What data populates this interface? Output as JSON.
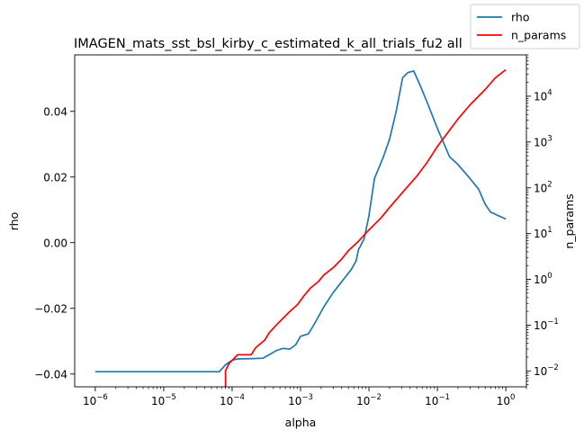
{
  "chart_data": {
    "type": "line",
    "title": "IMAGEN_mats_sst_bsl_kirby_c_estimated_k_all_trials_fu2 all",
    "xlabel": "alpha",
    "ylabel": "rho",
    "y2label": "n_params",
    "xscale": "log",
    "y2scale": "log",
    "xlim": [
      5e-07,
      2
    ],
    "ylim": [
      -0.0439,
      0.0572
    ],
    "y2lim": [
      0.0045,
      80000
    ],
    "x_ticks": [
      {
        "value": 1e-06,
        "base": "10",
        "exp": "−6"
      },
      {
        "value": 1e-05,
        "base": "10",
        "exp": "−5"
      },
      {
        "value": 0.0001,
        "base": "10",
        "exp": "−4"
      },
      {
        "value": 0.001,
        "base": "10",
        "exp": "−3"
      },
      {
        "value": 0.01,
        "base": "10",
        "exp": "−2"
      },
      {
        "value": 0.1,
        "base": "10",
        "exp": "−1"
      },
      {
        "value": 1,
        "base": "10",
        "exp": "0"
      }
    ],
    "y_ticks": [
      {
        "value": 0.04,
        "label": "0.04"
      },
      {
        "value": 0.02,
        "label": "0.02"
      },
      {
        "value": 0.0,
        "label": "0.00"
      },
      {
        "value": -0.02,
        "label": "−0.02"
      },
      {
        "value": -0.04,
        "label": "−0.04"
      }
    ],
    "y2_ticks": [
      {
        "value": 0.01,
        "base": "10",
        "exp": "−2"
      },
      {
        "value": 0.1,
        "base": "10",
        "exp": "−1"
      },
      {
        "value": 1,
        "base": "10",
        "exp": "0"
      },
      {
        "value": 10,
        "base": "10",
        "exp": "1"
      },
      {
        "value": 100,
        "base": "10",
        "exp": "2"
      },
      {
        "value": 1000,
        "base": "10",
        "exp": "3"
      },
      {
        "value": 10000,
        "base": "10",
        "exp": "4"
      }
    ],
    "legend": {
      "placement": "top-right",
      "entries": [
        "rho",
        "n_params"
      ]
    },
    "grid": false,
    "series": [
      {
        "name": "rho",
        "axis": "left",
        "color": "#1f77b4",
        "points": [
          [
            1e-06,
            -0.0393
          ],
          [
            6.5e-05,
            -0.0393
          ],
          [
            8e-05,
            -0.0372
          ],
          [
            0.0001,
            -0.0358
          ],
          [
            0.00012,
            -0.0354
          ],
          [
            0.0002,
            -0.0353
          ],
          [
            0.00028,
            -0.0352
          ],
          [
            0.00035,
            -0.0341
          ],
          [
            0.00045,
            -0.0328
          ],
          [
            0.00055,
            -0.0322
          ],
          [
            0.0007,
            -0.0324
          ],
          [
            0.00085,
            -0.0311
          ],
          [
            0.001,
            -0.0285
          ],
          [
            0.0013,
            -0.0278
          ],
          [
            0.0016,
            -0.0247
          ],
          [
            0.0022,
            -0.0195
          ],
          [
            0.003,
            -0.0152
          ],
          [
            0.0045,
            -0.0105
          ],
          [
            0.0055,
            -0.0082
          ],
          [
            0.0065,
            -0.0055
          ],
          [
            0.007,
            -0.0022
          ],
          [
            0.0085,
            0.0012
          ],
          [
            0.01,
            0.0082
          ],
          [
            0.012,
            0.0195
          ],
          [
            0.016,
            0.0258
          ],
          [
            0.02,
            0.0315
          ],
          [
            0.025,
            0.04
          ],
          [
            0.031,
            0.0502
          ],
          [
            0.037,
            0.0518
          ],
          [
            0.045,
            0.0523
          ],
          [
            0.055,
            0.0483
          ],
          [
            0.07,
            0.043
          ],
          [
            0.1,
            0.0348
          ],
          [
            0.15,
            0.0262
          ],
          [
            0.2,
            0.0238
          ],
          [
            0.3,
            0.0195
          ],
          [
            0.4,
            0.0163
          ],
          [
            0.5,
            0.0117
          ],
          [
            0.6,
            0.0093
          ],
          [
            1,
            0.0072
          ]
        ]
      },
      {
        "name": "n_params",
        "axis": "right",
        "color": "#ff0000",
        "points": [
          [
            8e-05,
            0.0045
          ],
          [
            8e-05,
            0.01
          ],
          [
            9e-05,
            0.0145
          ],
          [
            0.00012,
            0.0225
          ],
          [
            0.00015,
            0.0225
          ],
          [
            0.00019,
            0.0225
          ],
          [
            0.00022,
            0.032
          ],
          [
            0.0003,
            0.0471
          ],
          [
            0.00035,
            0.069
          ],
          [
            0.00045,
            0.103
          ],
          [
            0.00055,
            0.14
          ],
          [
            0.0007,
            0.2
          ],
          [
            0.0009,
            0.28
          ],
          [
            0.0011,
            0.42
          ],
          [
            0.0014,
            0.65
          ],
          [
            0.0018,
            0.88
          ],
          [
            0.0022,
            1.25
          ],
          [
            0.003,
            1.8
          ],
          [
            0.004,
            2.8
          ],
          [
            0.005,
            4.2
          ],
          [
            0.007,
            6.8
          ],
          [
            0.01,
            12
          ],
          [
            0.015,
            22
          ],
          [
            0.02,
            37
          ],
          [
            0.03,
            75
          ],
          [
            0.05,
            180
          ],
          [
            0.07,
            350
          ],
          [
            0.1,
            800
          ],
          [
            0.15,
            1800
          ],
          [
            0.2,
            3200
          ],
          [
            0.3,
            6500
          ],
          [
            0.5,
            14000
          ],
          [
            0.7,
            25000
          ],
          [
            1,
            38000
          ]
        ]
      }
    ]
  }
}
